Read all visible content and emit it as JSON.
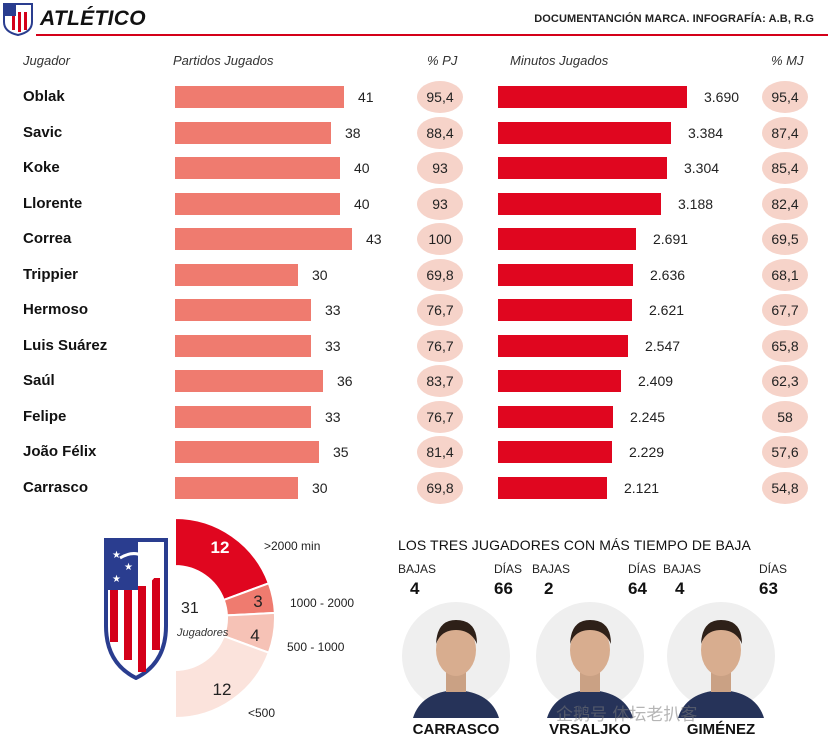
{
  "header": {
    "title": "ATLÉTICO",
    "credit": "DOCUMENTANCIÓN MARCA.  INFOGRAFÍA: A.B, R.G"
  },
  "columns": {
    "player": "Jugador",
    "matches": "Partidos Jugados",
    "pct_matches": "% PJ",
    "minutes": "Minutos Jugados",
    "pct_minutes": "% MJ"
  },
  "colors": {
    "matches_bar": "#ef7b6f",
    "minutes_bar": "#e0061f",
    "circle_bg": "#f6d3c9",
    "accent": "#d40019"
  },
  "chart_data": [
    {
      "type": "bar",
      "series_label": "Partidos Jugados",
      "categories": [
        "Oblak",
        "Savic",
        "Koke",
        "Llorente",
        "Correa",
        "Trippier",
        "Hermoso",
        "Luis Suárez",
        "Saúl",
        "Felipe",
        "João Félix",
        "Carrasco"
      ],
      "values": [
        41,
        38,
        40,
        40,
        43,
        30,
        33,
        33,
        36,
        33,
        35,
        30
      ],
      "pct_labels": [
        "95,4",
        "88,4",
        "93",
        "93",
        "100",
        "69,8",
        "76,7",
        "76,7",
        "83,7",
        "76,7",
        "81,4",
        "69,8"
      ],
      "xlim": [
        0,
        43
      ]
    },
    {
      "type": "bar",
      "series_label": "Minutos Jugados",
      "categories": [
        "Oblak",
        "Savic",
        "Koke",
        "Llorente",
        "Correa",
        "Trippier",
        "Hermoso",
        "Luis Suárez",
        "Saúl",
        "Felipe",
        "João Félix",
        "Carrasco"
      ],
      "values": [
        3690,
        3384,
        3304,
        3188,
        2691,
        2636,
        2621,
        2547,
        2409,
        2245,
        2229,
        2121
      ],
      "value_labels": [
        "3.690",
        "3.384",
        "3.304",
        "3.188",
        "2.691",
        "2.636",
        "2.621",
        "2.547",
        "2.409",
        "2.245",
        "2.229",
        "2.121"
      ],
      "pct_labels": [
        "95,4",
        "87,4",
        "85,4",
        "82,4",
        "69,5",
        "68,1",
        "67,7",
        "65,8",
        "62,3",
        "58",
        "57,6",
        "54,8"
      ],
      "xlim": [
        0,
        3690
      ]
    },
    {
      "type": "pie",
      "total": 31,
      "total_label": "Jugadores",
      "slices": [
        {
          "label": ">2000 min",
          "value": 12,
          "color": "#e0061f"
        },
        {
          "label": "1000 - 2000",
          "value": 3,
          "color": "#ef7b6f"
        },
        {
          "label": "500 - 1000",
          "value": 4,
          "color": "#f6c2b6"
        },
        {
          "label": "<500",
          "value": 12,
          "color": "#fbe3dc"
        }
      ]
    }
  ],
  "injuries": {
    "title": "LOS TRES JUGADORES CON MÁS TIEMPO DE BAJA",
    "bajas_label": "BAJAS",
    "dias_label": "DÍAS",
    "players": [
      {
        "name": "CARRASCO",
        "bajas": "4",
        "dias": "66"
      },
      {
        "name": "VRSALJKO",
        "bajas": "2",
        "dias": "64"
      },
      {
        "name": "GIMÉNEZ",
        "bajas": "4",
        "dias": "63"
      }
    ]
  },
  "watermark": "企鹅号 体坛老扒客"
}
